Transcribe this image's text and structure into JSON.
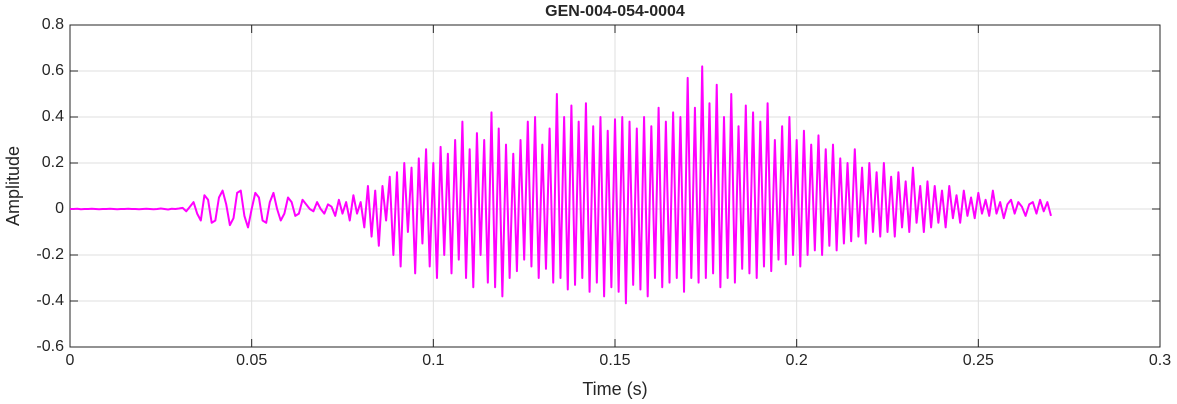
{
  "chart_data": {
    "type": "line",
    "title": "GEN-004-054-0004",
    "x_label": "Time (s)",
    "y_label": "Amplitude",
    "color": "#ff00ff",
    "grid": true,
    "xlim": [
      0,
      0.3
    ],
    "xticks": [
      0,
      0.05,
      0.1,
      0.15,
      0.2,
      0.25,
      0.3
    ],
    "ylim": [
      -0.6,
      0.8
    ],
    "yticks": [
      -0.6,
      -0.4,
      -0.2,
      0,
      0.2,
      0.4,
      0.6,
      0.8
    ],
    "x": [
      0,
      0.001,
      0.002,
      0.003,
      0.004,
      0.005,
      0.006,
      0.007,
      0.008,
      0.009,
      0.01,
      0.011,
      0.012,
      0.013,
      0.014,
      0.015,
      0.016,
      0.017,
      0.018,
      0.019,
      0.02,
      0.021,
      0.022,
      0.023,
      0.024,
      0.025,
      0.026,
      0.027,
      0.028,
      0.029,
      0.03,
      0.031,
      0.032,
      0.033,
      0.034,
      0.035,
      0.036,
      0.037,
      0.038,
      0.039,
      0.04,
      0.041,
      0.042,
      0.043,
      0.044,
      0.045,
      0.046,
      0.047,
      0.048,
      0.049,
      0.05,
      0.051,
      0.052,
      0.053,
      0.054,
      0.055,
      0.056,
      0.057,
      0.058,
      0.059,
      0.06,
      0.061,
      0.062,
      0.063,
      0.064,
      0.065,
      0.066,
      0.067,
      0.068,
      0.069,
      0.07,
      0.071,
      0.072,
      0.073,
      0.074,
      0.075,
      0.076,
      0.077,
      0.078,
      0.079,
      0.08,
      0.081,
      0.082,
      0.083,
      0.084,
      0.085,
      0.086,
      0.087,
      0.088,
      0.089,
      0.09,
      0.091,
      0.092,
      0.093,
      0.094,
      0.095,
      0.096,
      0.097,
      0.098,
      0.099,
      0.1,
      0.101,
      0.102,
      0.103,
      0.104,
      0.105,
      0.106,
      0.107,
      0.108,
      0.109,
      0.11,
      0.111,
      0.112,
      0.113,
      0.114,
      0.115,
      0.116,
      0.117,
      0.118,
      0.119,
      0.12,
      0.121,
      0.122,
      0.123,
      0.124,
      0.125,
      0.126,
      0.127,
      0.128,
      0.129,
      0.13,
      0.131,
      0.132,
      0.133,
      0.134,
      0.135,
      0.136,
      0.137,
      0.138,
      0.139,
      0.14,
      0.141,
      0.142,
      0.143,
      0.144,
      0.145,
      0.146,
      0.147,
      0.148,
      0.149,
      0.15,
      0.151,
      0.152,
      0.153,
      0.154,
      0.155,
      0.156,
      0.157,
      0.158,
      0.159,
      0.16,
      0.161,
      0.162,
      0.163,
      0.164,
      0.165,
      0.166,
      0.167,
      0.168,
      0.169,
      0.17,
      0.171,
      0.172,
      0.173,
      0.174,
      0.175,
      0.176,
      0.177,
      0.178,
      0.179,
      0.18,
      0.181,
      0.182,
      0.183,
      0.184,
      0.185,
      0.186,
      0.187,
      0.188,
      0.189,
      0.19,
      0.191,
      0.192,
      0.193,
      0.194,
      0.195,
      0.196,
      0.197,
      0.198,
      0.199,
      0.2,
      0.201,
      0.202,
      0.203,
      0.204,
      0.205,
      0.206,
      0.207,
      0.208,
      0.209,
      0.21,
      0.211,
      0.212,
      0.213,
      0.214,
      0.215,
      0.216,
      0.217,
      0.218,
      0.219,
      0.22,
      0.221,
      0.222,
      0.223,
      0.224,
      0.225,
      0.226,
      0.227,
      0.228,
      0.229,
      0.23,
      0.231,
      0.232,
      0.233,
      0.234,
      0.235,
      0.236,
      0.237,
      0.238,
      0.239,
      0.24,
      0.241,
      0.242,
      0.243,
      0.244,
      0.245,
      0.246,
      0.247,
      0.248,
      0.249,
      0.25,
      0.251,
      0.252,
      0.253,
      0.254,
      0.255,
      0.256,
      0.257,
      0.258,
      0.259,
      0.26,
      0.261,
      0.262,
      0.263,
      0.264,
      0.265,
      0.266,
      0.267,
      0.268,
      0.269,
      0.27
    ],
    "values": [
      0,
      0,
      0.001,
      -0.001,
      0,
      0,
      0.001,
      0,
      -0.001,
      0,
      0,
      0.001,
      0,
      -0.001,
      0,
      0,
      0.001,
      0,
      0,
      -0.001,
      0,
      0.001,
      0,
      -0.001,
      0,
      0.002,
      0,
      -0.002,
      0.001,
      0,
      0.002,
      0.005,
      -0.01,
      0.01,
      0.03,
      -0.02,
      -0.05,
      0.06,
      0.04,
      -0.06,
      -0.05,
      0.05,
      0.08,
      0.02,
      -0.07,
      -0.04,
      0.07,
      0.08,
      -0.03,
      -0.08,
      0,
      0.07,
      0.05,
      -0.05,
      -0.06,
      0.03,
      0.07,
      0,
      -0.05,
      -0.02,
      0.05,
      0.03,
      -0.03,
      -0.02,
      0.04,
      0.02,
      0,
      -0.01,
      0.03,
      0,
      -0.02,
      0.02,
      0.01,
      -0.03,
      0.04,
      -0.02,
      0.03,
      -0.05,
      0.06,
      -0.02,
      0.03,
      -0.08,
      0.1,
      -0.12,
      0.08,
      -0.16,
      0.1,
      -0.05,
      0.14,
      -0.2,
      0.16,
      -0.25,
      0.2,
      -0.1,
      0.18,
      -0.28,
      0.22,
      -0.15,
      0.26,
      -0.25,
      0.2,
      -0.3,
      0.27,
      -0.2,
      0.24,
      -0.28,
      0.3,
      -0.22,
      0.38,
      -0.3,
      0.26,
      -0.34,
      0.33,
      -0.2,
      0.3,
      -0.32,
      0.42,
      -0.34,
      0.35,
      -0.38,
      0.28,
      -0.3,
      0.24,
      -0.27,
      0.3,
      -0.22,
      0.38,
      -0.25,
      0.4,
      -0.3,
      0.28,
      -0.26,
      0.35,
      -0.32,
      0.5,
      -0.3,
      0.4,
      -0.35,
      0.45,
      -0.33,
      0.38,
      -0.3,
      0.46,
      -0.36,
      0.36,
      -0.32,
      0.4,
      -0.38,
      0.34,
      -0.34,
      0.39,
      -0.36,
      0.4,
      -0.41,
      0.38,
      -0.33,
      0.35,
      -0.35,
      0.4,
      -0.38,
      0.36,
      -0.3,
      0.44,
      -0.34,
      0.38,
      -0.32,
      0.42,
      -0.3,
      0.4,
      -0.36,
      0.57,
      -0.3,
      0.44,
      -0.32,
      0.62,
      -0.3,
      0.46,
      -0.28,
      0.54,
      -0.34,
      0.4,
      -0.3,
      0.5,
      -0.32,
      0.36,
      -0.26,
      0.45,
      -0.28,
      0.42,
      -0.3,
      0.38,
      -0.25,
      0.46,
      -0.27,
      0.3,
      -0.22,
      0.36,
      -0.24,
      0.4,
      -0.2,
      0.3,
      -0.25,
      0.34,
      -0.2,
      0.28,
      -0.18,
      0.32,
      -0.2,
      0.26,
      -0.16,
      0.28,
      -0.18,
      0.22,
      -0.15,
      0.2,
      -0.14,
      0.26,
      -0.12,
      0.18,
      -0.15,
      0.2,
      -0.1,
      0.16,
      -0.12,
      0.2,
      -0.1,
      0.14,
      -0.12,
      0.16,
      -0.08,
      0.12,
      -0.1,
      0.18,
      -0.06,
      0.1,
      -0.1,
      0.12,
      -0.08,
      0.1,
      -0.06,
      0.08,
      -0.08,
      0.1,
      -0.04,
      0.06,
      -0.06,
      0.08,
      -0.03,
      0.05,
      -0.04,
      0.07,
      -0.02,
      0.04,
      -0.03,
      0.08,
      -0.02,
      0.03,
      -0.04,
      0.02,
      0.04,
      -0.02,
      0.03,
      0.01,
      -0.03,
      0.02,
      0.03,
      -0.02,
      0.04,
      -0.01,
      0.03,
      -0.03
    ]
  }
}
